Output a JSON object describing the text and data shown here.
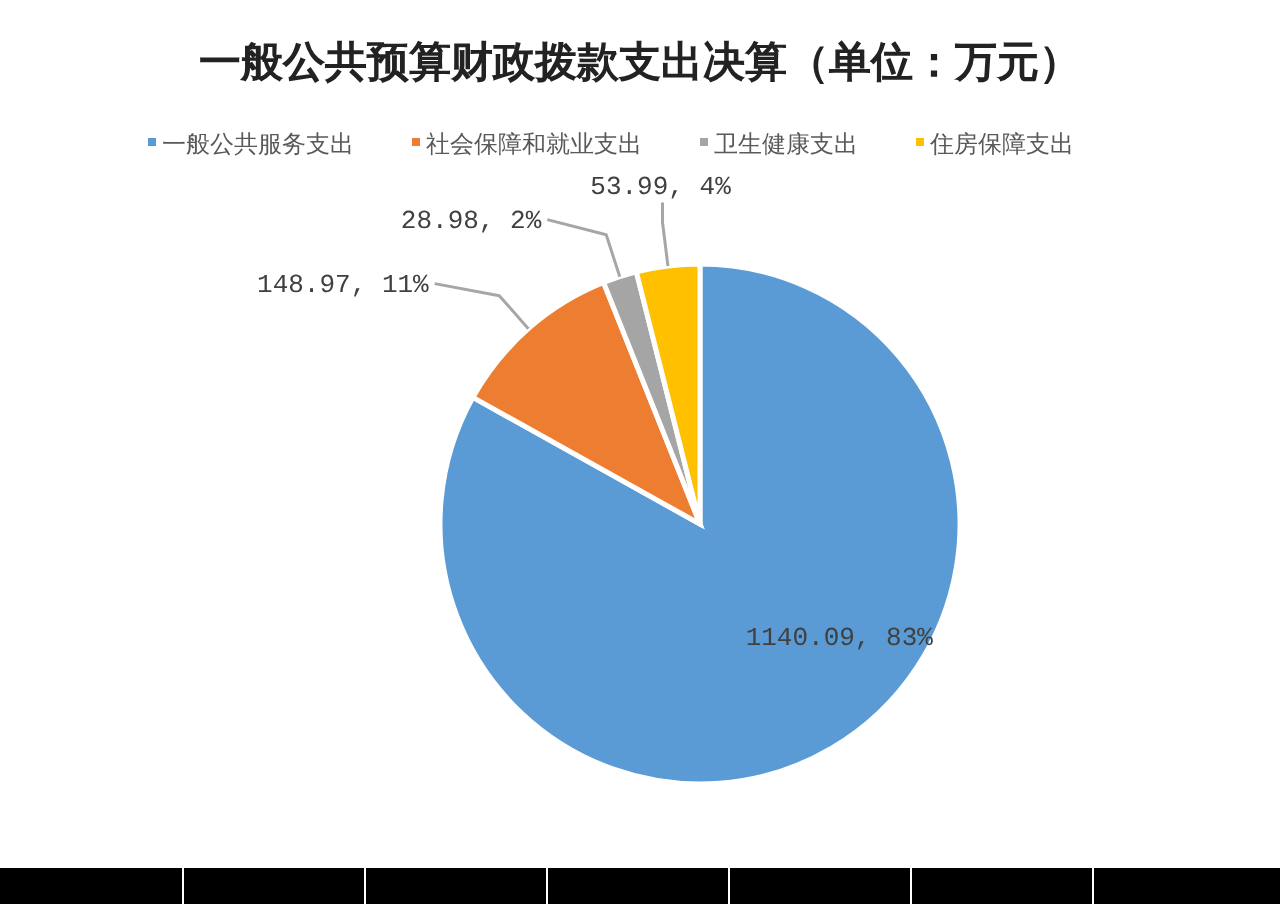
{
  "chart_data": {
    "type": "pie",
    "title": "一般公共预算财政拨款支出决算（单位：万元）",
    "categories": [
      "一般公共服务支出",
      "社会保障和就业支出",
      "卫生健康支出",
      "住房保障支出"
    ],
    "values": [
      1140.09,
      148.97,
      28.98,
      53.99
    ],
    "colors": [
      "#5b9bd5",
      "#ed7d31",
      "#a5a5a5",
      "#ffc000"
    ],
    "value_labels": [
      "1140.09, 83%",
      "148.97, 11%",
      "28.98, 2%",
      "53.99, 4%"
    ],
    "legend": "top"
  }
}
